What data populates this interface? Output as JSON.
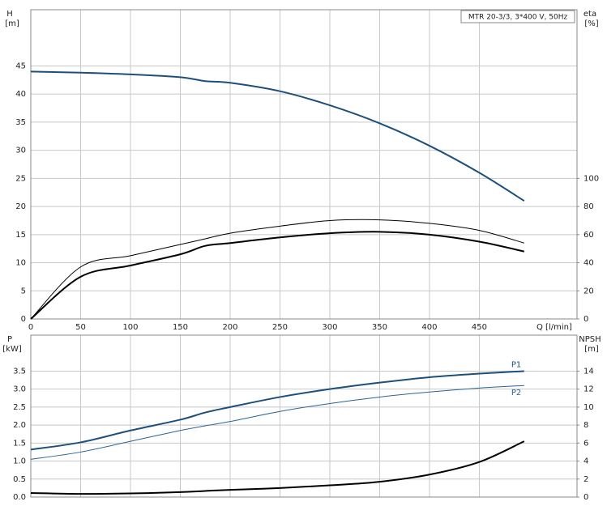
{
  "chart_data": [
    {
      "type": "line",
      "annotation": "MTR 20-3/3, 3*400 V, 50Hz",
      "ylabel": "H",
      "yunit": "[m]",
      "y2label": "eta",
      "y2unit": "[%]",
      "xlabel": "Q [l/min]",
      "xlim": [
        0,
        548
      ],
      "ylim": [
        0,
        55
      ],
      "y2lim": [
        0,
        220
      ],
      "xticks": [
        0,
        50,
        100,
        150,
        200,
        250,
        300,
        350,
        400,
        450
      ],
      "yticks": [
        0,
        5,
        10,
        15,
        20,
        25,
        30,
        35,
        40,
        45
      ],
      "y2ticks": [
        0,
        20,
        40,
        60,
        80,
        100
      ],
      "grid": true,
      "x": [
        0,
        50,
        100,
        150,
        175,
        200,
        250,
        300,
        350,
        400,
        450,
        495
      ],
      "series": [
        {
          "color": "#1d4f7c",
          "width": 2,
          "values": [
            44,
            43.8,
            43.5,
            43,
            42.3,
            42,
            40.5,
            38,
            34.8,
            30.8,
            26,
            21
          ]
        },
        {
          "color": "#000000",
          "width": 1,
          "axis": "y2",
          "values": [
            0,
            37,
            45,
            53,
            57,
            61,
            66,
            70,
            70.5,
            68,
            63,
            54
          ]
        },
        {
          "color": "#000000",
          "width": 2,
          "axis": "y2",
          "values": [
            0,
            30,
            38,
            46,
            52,
            54,
            58,
            61,
            62,
            60,
            55,
            48
          ]
        }
      ]
    },
    {
      "type": "line",
      "ylabel": "P",
      "yunit": "[kW]",
      "y2label": "NPSH",
      "y2unit": "[m]",
      "xlim": [
        0,
        548
      ],
      "ylim": [
        0,
        4.5
      ],
      "y2lim": [
        0,
        18
      ],
      "xticks": [
        0,
        50,
        100,
        150,
        200,
        250,
        300,
        350,
        400,
        450
      ],
      "yticks": [
        {
          "value": 0,
          "label": "0.0"
        },
        0.5,
        {
          "value": 1,
          "label": "1.0"
        },
        1.5,
        {
          "value": 2,
          "label": "2.0"
        },
        2.5,
        {
          "value": 3,
          "label": "3.0"
        },
        3.5
      ],
      "y2ticks": [
        0,
        2,
        4,
        6,
        8,
        10,
        12,
        14
      ],
      "grid": true,
      "x": [
        0,
        50,
        100,
        150,
        175,
        200,
        250,
        300,
        350,
        400,
        450,
        495
      ],
      "series": [
        {
          "name": "P1",
          "color": "#1d4f7c",
          "width": 2,
          "values": [
            1.32,
            1.52,
            1.85,
            2.15,
            2.35,
            2.5,
            2.78,
            3.0,
            3.18,
            3.33,
            3.43,
            3.5
          ]
        },
        {
          "name": "P2",
          "color": "#2a6496",
          "width": 1,
          "values": [
            1.05,
            1.25,
            1.55,
            1.85,
            1.98,
            2.1,
            2.38,
            2.6,
            2.78,
            2.92,
            3.03,
            3.1
          ]
        },
        {
          "color": "#000000",
          "width": 2,
          "axis": "y2",
          "values": [
            0.45,
            0.35,
            0.4,
            0.55,
            0.68,
            0.8,
            1.0,
            1.3,
            1.7,
            2.5,
            3.9,
            6.2
          ]
        }
      ]
    }
  ]
}
